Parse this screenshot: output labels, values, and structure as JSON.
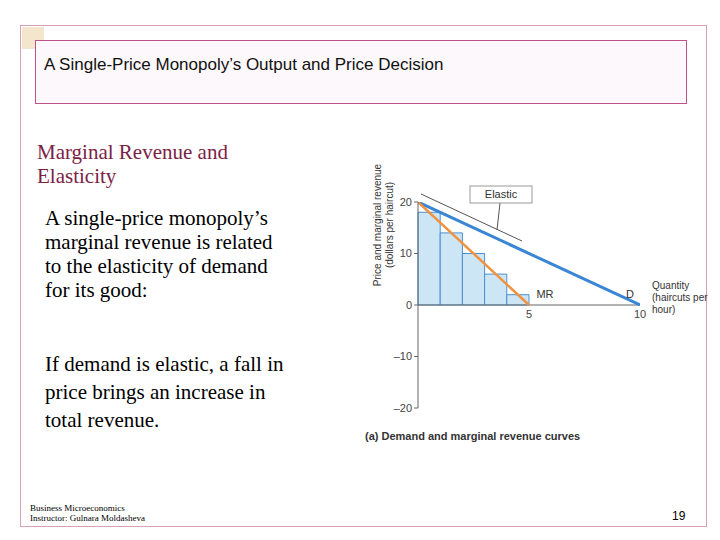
{
  "slide": {
    "title": "A Single-Price Monopoly’s Output and Price Decision",
    "heading": [
      "Marginal Revenue and",
      "Elasticity"
    ],
    "paragraphs": [
      [
        "A single-price monopoly’s",
        "marginal revenue is related",
        "to the elasticity of demand",
        "for its good:"
      ],
      [
        "If demand is elastic, a fall in",
        "price brings an increase in",
        "total revenue."
      ]
    ],
    "footer": [
      "Business Microeconomics",
      "Instructor: Gulnara Moldasheva"
    ],
    "page": 19
  },
  "chart_data": {
    "type": "line",
    "title": "(a) Demand and marginal revenue curves",
    "xlabel": "Quantity (haircuts per hour)",
    "ylabel": "Price and marginal revenue (dollars per haircut)",
    "annotations": [
      "Elastic"
    ],
    "series": [
      {
        "name": "D",
        "type": "line",
        "x": [
          0,
          10
        ],
        "values": [
          20,
          0
        ],
        "color": "#3a86d4"
      },
      {
        "name": "MR",
        "type": "line",
        "x": [
          0,
          5
        ],
        "values": [
          20,
          0
        ],
        "color": "#f0923f"
      }
    ],
    "bars": {
      "bins": [
        0,
        1,
        2,
        3,
        4,
        5
      ],
      "values": [
        18,
        14,
        10,
        6,
        2
      ],
      "color": "#cde6f6"
    },
    "xlim": [
      0,
      10
    ],
    "xticks": [
      5,
      10
    ],
    "ylim": [
      -20,
      20
    ],
    "yticks": [
      {
        "value": -20,
        "label": "–20"
      },
      {
        "value": -10,
        "label": "–10"
      },
      0,
      10,
      20
    ],
    "grid": false
  }
}
